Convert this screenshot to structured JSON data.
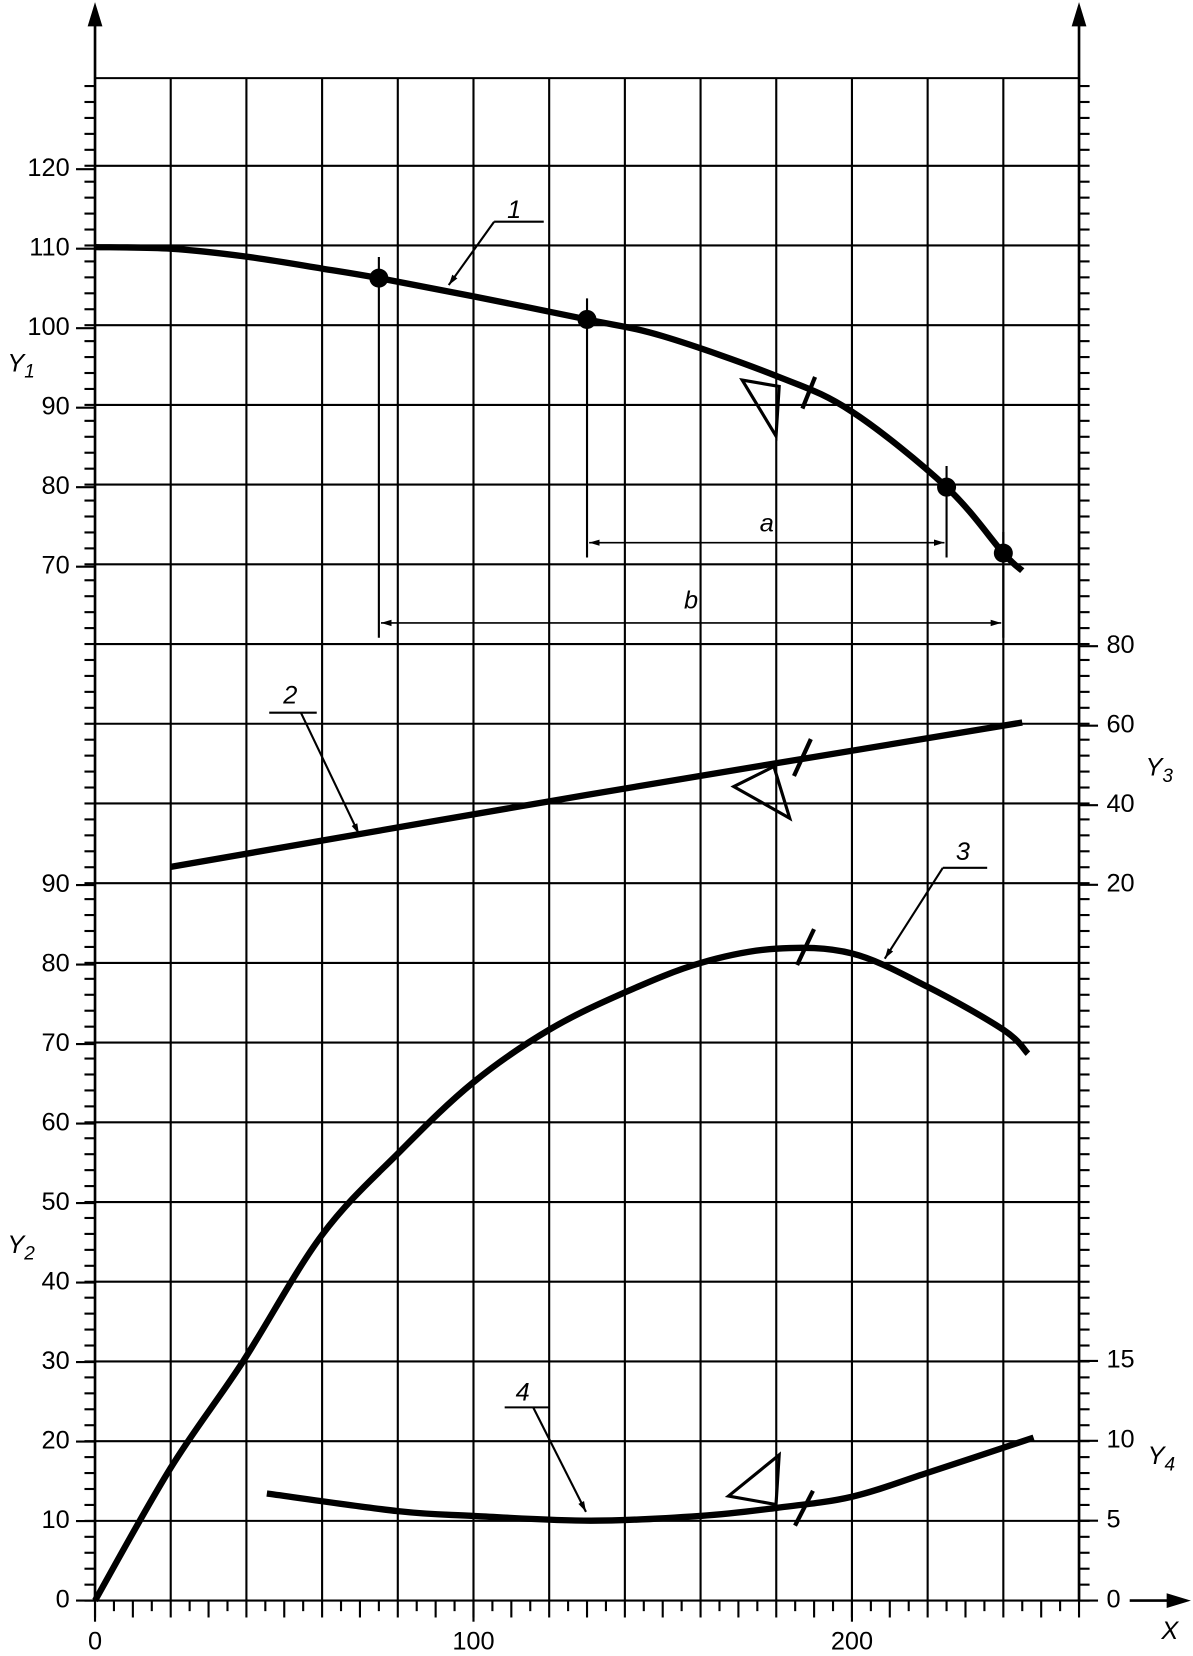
{
  "chart_data": [
    {
      "type": "line",
      "axis_side": "left",
      "x_label": "X",
      "xlim": [
        0,
        260
      ],
      "xticks": [
        0,
        100,
        200
      ],
      "y_label": {
        "text": "Y",
        "sub": "1"
      },
      "ylim": [
        60,
        130
      ],
      "yticks": [
        70,
        80,
        90,
        100,
        110,
        120
      ],
      "series": [
        {
          "name": "1",
          "color": "#000000",
          "x": [
            0,
            20,
            40,
            60,
            75,
            100,
            130,
            150,
            180,
            200,
            225,
            240,
            245
          ],
          "values": [
            110.2,
            110,
            109,
            107.5,
            106.3,
            104,
            101.1,
            99,
            94,
            89.5,
            80,
            71.7,
            69.5
          ]
        }
      ],
      "points": {
        "x": [
          75,
          130,
          225,
          240
        ],
        "values": [
          106.3,
          101.1,
          80,
          71.7
        ]
      },
      "annotations": [
        "a",
        "b"
      ]
    },
    {
      "type": "line",
      "axis_side": "right",
      "xlim": [
        0,
        260
      ],
      "y_label": {
        "text": "Y",
        "sub": "3"
      },
      "ylim": [
        20,
        80
      ],
      "yticks": [
        20,
        40,
        60,
        80
      ],
      "series": [
        {
          "name": "2",
          "color": "#000000",
          "x": [
            20,
            130,
            245
          ],
          "values": [
            24.5,
            42.6,
            60.8
          ]
        }
      ]
    },
    {
      "type": "line",
      "axis_side": "left",
      "xlim": [
        0,
        260
      ],
      "y_label": {
        "text": "Y",
        "sub": "2"
      },
      "ylim": [
        0,
        100
      ],
      "yticks": [
        0,
        10,
        20,
        30,
        40,
        50,
        60,
        70,
        80,
        90
      ],
      "series": [
        {
          "name": "3",
          "color": "#000000",
          "x": [
            0,
            20,
            39,
            60,
            80.8,
            100,
            120,
            140,
            160,
            180,
            200,
            220,
            240,
            246.5
          ],
          "values": [
            0,
            16.7,
            30,
            46,
            56.6,
            65.2,
            71.8,
            76.5,
            80.2,
            82,
            81.4,
            77.2,
            71.8,
            68.8
          ]
        }
      ]
    },
    {
      "type": "line",
      "axis_side": "right",
      "xlim": [
        0,
        260
      ],
      "y_label": {
        "text": "Y",
        "sub": "4"
      },
      "ylim": [
        0,
        15
      ],
      "yticks": [
        0,
        5,
        10,
        15
      ],
      "series": [
        {
          "name": "4",
          "color": "#000000",
          "x": [
            45.4,
            80,
            100,
            131,
            160,
            180,
            200,
            220,
            248
          ],
          "values": [
            6.7,
            5.6,
            5.3,
            5.0,
            5.3,
            5.8,
            6.5,
            8.0,
            10.2
          ]
        }
      ]
    }
  ]
}
